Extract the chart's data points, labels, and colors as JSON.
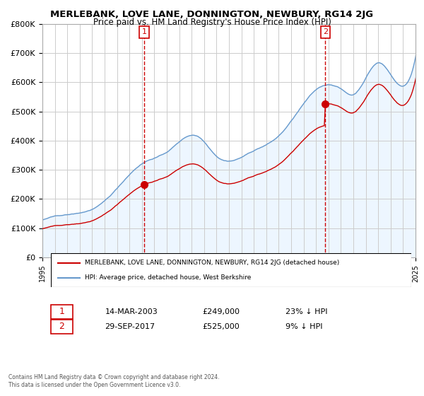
{
  "title": "MERLEBANK, LOVE LANE, DONNINGTON, NEWBURY, RG14 2JG",
  "subtitle": "Price paid vs. HM Land Registry's House Price Index (HPI)",
  "legend_line1": "MERLEBANK, LOVE LANE, DONNINGTON, NEWBURY, RG14 2JG (detached house)",
  "legend_line2": "HPI: Average price, detached house, West Berkshire",
  "transaction1_label": "1",
  "transaction1_date": "14-MAR-2003",
  "transaction1_price": "£249,000",
  "transaction1_hpi": "23% ↓ HPI",
  "transaction1_year": 2003.2,
  "transaction1_value": 249000,
  "transaction2_label": "2",
  "transaction2_date": "29-SEP-2017",
  "transaction2_price": "£525,000",
  "transaction2_hpi": "9% ↓ HPI",
  "transaction2_year": 2017.75,
  "transaction2_value": 525000,
  "red_color": "#cc0000",
  "blue_color": "#6699cc",
  "dashed_color": "#cc0000",
  "background_fill": "#ddeeff",
  "footer_text": "Contains HM Land Registry data © Crown copyright and database right 2024.\nThis data is licensed under the Open Government Licence v3.0.",
  "ylim": [
    0,
    800000
  ],
  "yticks": [
    0,
    100000,
    200000,
    300000,
    400000,
    500000,
    600000,
    700000,
    800000
  ],
  "ytick_labels": [
    "£0",
    "£100K",
    "£200K",
    "£300K",
    "£400K",
    "£500K",
    "£600K",
    "£700K",
    "£800K"
  ],
  "xstart": 1995,
  "xend": 2025
}
